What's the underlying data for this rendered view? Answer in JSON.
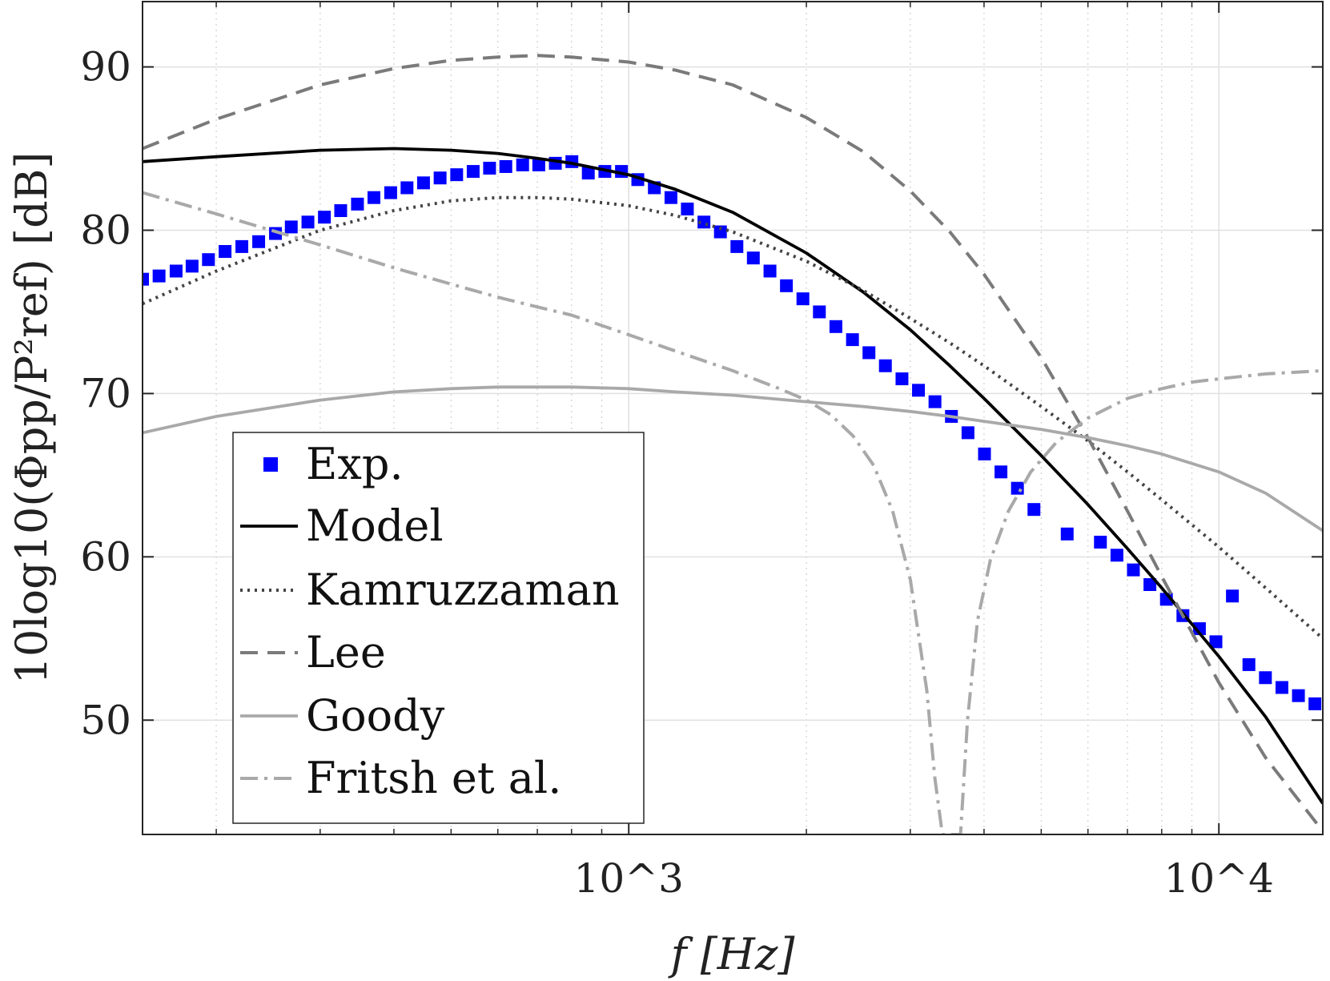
{
  "chart_data": {
    "type": "line",
    "xscale": "log",
    "xlim": [
      150,
      15000
    ],
    "ylim": [
      43,
      94
    ],
    "grid": true,
    "legend_position": "bottom-left",
    "xlabel": "f [Hz]",
    "ylabel": "10log10(Φpp/P²ref) [dB]",
    "x_ticks": [
      1000,
      10000
    ],
    "x_tick_labels": [
      "10^3",
      "10^4"
    ],
    "y_ticks": [
      50,
      60,
      70,
      80,
      90
    ],
    "y_tick_labels": [
      "50",
      "60",
      "70",
      "80",
      "90"
    ],
    "series": [
      {
        "name": "Exp.",
        "kind": "markers",
        "color": "#0000ff",
        "x": [
          150,
          160,
          171,
          182,
          194,
          207,
          221,
          236,
          252,
          268,
          286,
          305,
          325,
          347,
          370,
          395,
          421,
          449,
          479,
          511,
          545,
          581,
          619,
          661,
          704,
          751,
          801,
          854,
          911,
          972,
          1036,
          1105,
          1179,
          1257,
          1341,
          1430,
          1525,
          1626,
          1735,
          1850,
          1973,
          2104,
          2244,
          2394,
          2553,
          2722,
          2904,
          3097,
          3303,
          3522,
          3757,
          4007,
          4273,
          4557,
          4860,
          5533,
          6299,
          6718,
          7164,
          7641,
          8149,
          8691,
          9269,
          9885,
          10542,
          11243,
          11991,
          12789,
          13640,
          14547
        ],
        "y": [
          77.0,
          77.2,
          77.5,
          77.8,
          78.2,
          78.7,
          79.0,
          79.3,
          79.8,
          80.2,
          80.5,
          80.8,
          81.2,
          81.6,
          82.0,
          82.3,
          82.6,
          82.9,
          83.2,
          83.4,
          83.6,
          83.8,
          83.9,
          84.0,
          84.0,
          84.1,
          84.2,
          83.5,
          83.6,
          83.6,
          83.1,
          82.6,
          82.0,
          81.3,
          80.5,
          79.9,
          79.0,
          78.3,
          77.5,
          76.6,
          75.8,
          75.0,
          74.1,
          73.3,
          72.5,
          71.7,
          70.9,
          70.2,
          69.5,
          68.6,
          67.6,
          66.3,
          65.2,
          64.2,
          62.9,
          61.4,
          60.9,
          60.1,
          59.2,
          58.3,
          57.4,
          56.4,
          55.6,
          54.8,
          57.6,
          53.4,
          52.6,
          52.0,
          51.5,
          51.0
        ]
      },
      {
        "name": "Model",
        "kind": "line",
        "color": "#000000",
        "dash": "solid",
        "x": [
          150,
          200,
          300,
          400,
          500,
          600,
          700,
          800,
          1000,
          1200,
          1500,
          2000,
          2500,
          3000,
          3500,
          4000,
          5000,
          6000,
          7000,
          8000,
          10000,
          12000,
          15000
        ],
        "y": [
          84.2,
          84.5,
          84.9,
          85.0,
          84.9,
          84.7,
          84.4,
          84.1,
          83.4,
          82.5,
          81.1,
          78.6,
          76.2,
          73.9,
          71.7,
          69.7,
          66.2,
          63.2,
          60.5,
          58.1,
          53.9,
          50.2,
          44.9
        ]
      },
      {
        "name": "Kamruzzaman",
        "kind": "line",
        "color": "#444444",
        "dash": "dotted",
        "x": [
          150,
          200,
          300,
          400,
          500,
          600,
          700,
          800,
          1000,
          1200,
          1500,
          2000,
          2500,
          3000,
          3500,
          4000,
          5000,
          6000,
          7000,
          8000,
          10000,
          12000,
          15000
        ],
        "y": [
          75.5,
          77.5,
          80.0,
          81.2,
          81.8,
          82.0,
          82.0,
          81.9,
          81.5,
          80.9,
          79.9,
          78.1,
          76.3,
          74.6,
          73.1,
          71.7,
          69.2,
          67.1,
          65.2,
          63.5,
          60.6,
          58.1,
          55.0
        ]
      },
      {
        "name": "Lee",
        "kind": "line",
        "color": "#7a7a7a",
        "dash": "dashed",
        "x": [
          150,
          200,
          300,
          400,
          500,
          600,
          700,
          800,
          1000,
          1200,
          1500,
          2000,
          2500,
          3000,
          3500,
          4000,
          5000,
          6000,
          7000,
          8000,
          10000,
          12000,
          15000
        ],
        "y": [
          85.0,
          86.8,
          88.9,
          89.9,
          90.4,
          90.6,
          90.7,
          90.6,
          90.3,
          89.8,
          88.9,
          86.9,
          84.8,
          82.4,
          79.9,
          77.3,
          72.2,
          67.3,
          62.8,
          58.8,
          52.3,
          47.7,
          43.2
        ]
      },
      {
        "name": "Goody",
        "kind": "line",
        "color": "#a9a9a9",
        "dash": "solid",
        "x": [
          150,
          200,
          300,
          400,
          500,
          600,
          700,
          800,
          1000,
          1200,
          1500,
          2000,
          2500,
          3000,
          3500,
          4000,
          5000,
          6000,
          7000,
          8000,
          10000,
          12000,
          15000
        ],
        "y": [
          67.6,
          68.6,
          69.6,
          70.1,
          70.3,
          70.4,
          70.4,
          70.4,
          70.3,
          70.1,
          69.9,
          69.5,
          69.2,
          68.9,
          68.6,
          68.3,
          67.8,
          67.3,
          66.8,
          66.3,
          65.2,
          63.9,
          61.6
        ]
      },
      {
        "name": "Fritsh et al.",
        "kind": "line",
        "color": "#a9a9a9",
        "dash": "dashdot",
        "x": [
          150,
          200,
          300,
          400,
          500,
          600,
          700,
          800,
          1000,
          1200,
          1500,
          1800,
          2000,
          2200,
          2400,
          2600,
          2800,
          3000,
          3200,
          3300,
          3400,
          3480,
          3530,
          3560,
          3570,
          3580,
          3600,
          3650,
          3750,
          3900,
          4100,
          4400,
          4800,
          5300,
          6000,
          7000,
          8000,
          9000,
          10000,
          12000,
          15000
        ],
        "y": [
          82.3,
          81.0,
          79.1,
          77.7,
          76.7,
          75.9,
          75.3,
          74.8,
          73.6,
          72.6,
          71.4,
          70.3,
          69.6,
          68.7,
          67.4,
          65.6,
          62.8,
          58.6,
          51.8,
          46.5,
          43.0,
          43.0,
          43.0,
          43.0,
          43.0,
          43.0,
          43.0,
          43.0,
          50.0,
          56.1,
          59.8,
          62.8,
          65.2,
          67.0,
          68.5,
          69.7,
          70.3,
          70.7,
          70.9,
          71.2,
          71.4
        ]
      }
    ]
  }
}
